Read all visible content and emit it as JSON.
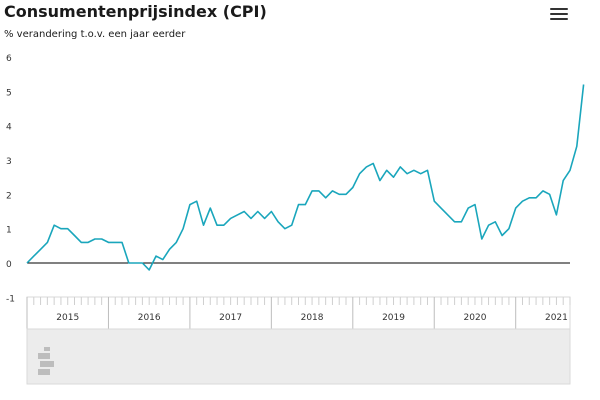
{
  "header": {
    "title": "Consumentenprijsindex (CPI)",
    "subtitle": "% verandering t.o.v. een jaar eerder"
  },
  "toolbar": {
    "menu_icon": "hamburger-menu-icon"
  },
  "footer": {
    "logo_icon": "cbs-logo-icon"
  },
  "colors": {
    "line": "#1aa6bc",
    "axis": "#000000",
    "grid": "#e6e6e6",
    "navigator_bg": "#ececec",
    "navigator_border": "#dadada",
    "logo": "#bdbdbd"
  },
  "chart_data": {
    "type": "line",
    "title": "Consumentenprijsindex (CPI)",
    "subtitle": "% verandering t.o.v. een jaar eerder",
    "xlabel": "",
    "ylabel": "",
    "ylim": [
      -1,
      6
    ],
    "yticks": [
      "6",
      "5",
      "4",
      "3",
      "2",
      "1",
      "0",
      "-1"
    ],
    "year_labels": [
      "2015",
      "2016",
      "2017",
      "2018",
      "2019",
      "2020",
      "2021"
    ],
    "x_start": "2015-01",
    "x_end": "2021-09",
    "grid": false,
    "series": [
      {
        "values": [
          0.0,
          0.2,
          0.4,
          0.6,
          1.1,
          1.0,
          1.0,
          0.8,
          0.6,
          0.6,
          0.7,
          0.7,
          0.6,
          0.6,
          0.6,
          0.0,
          0.0,
          0.0,
          -0.2,
          0.2,
          0.1,
          0.4,
          0.6,
          1.0,
          1.7,
          1.8,
          1.1,
          1.6,
          1.1,
          1.1,
          1.3,
          1.4,
          1.5,
          1.3,
          1.5,
          1.3,
          1.5,
          1.2,
          1.0,
          1.1,
          1.7,
          1.7,
          2.1,
          2.1,
          1.9,
          2.1,
          2.0,
          2.0,
          2.2,
          2.6,
          2.8,
          2.9,
          2.4,
          2.7,
          2.5,
          2.8,
          2.6,
          2.7,
          2.6,
          2.7,
          1.8,
          1.6,
          1.4,
          1.2,
          1.2,
          1.6,
          1.7,
          0.7,
          1.1,
          1.2,
          0.8,
          1.0,
          1.6,
          1.8,
          1.9,
          1.9,
          2.1,
          2.0,
          1.4,
          2.4,
          2.7,
          3.4,
          5.2
        ]
      }
    ]
  }
}
